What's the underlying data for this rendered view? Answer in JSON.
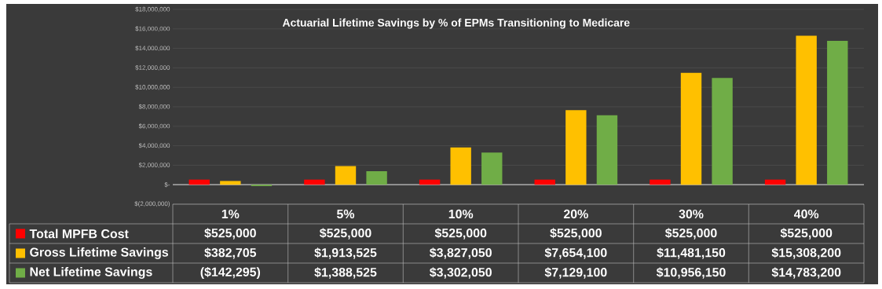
{
  "chart_data": {
    "type": "bar",
    "title": "Actuarial Lifetime Savings by % of EPMs Transitioning to Medicare",
    "categories": [
      "1%",
      "5%",
      "10%",
      "20%",
      "30%",
      "40%"
    ],
    "series": [
      {
        "name": "Total MPFB Cost",
        "color": "#ff0000",
        "values": [
          525000,
          525000,
          525000,
          525000,
          525000,
          525000
        ],
        "value_labels": [
          "$525,000",
          "$525,000",
          "$525,000",
          "$525,000",
          "$525,000",
          "$525,000"
        ]
      },
      {
        "name": "Gross Lifetime Savings",
        "color": "#ffc000",
        "values": [
          382705,
          1913525,
          3827050,
          7654100,
          11481150,
          15308200
        ],
        "value_labels": [
          "$382,705",
          "$1,913,525",
          "$3,827,050",
          "$7,654,100",
          "$11,481,150",
          "$15,308,200"
        ]
      },
      {
        "name": "Net Lifetime Savings",
        "color": "#70ad47",
        "values": [
          -142295,
          1388525,
          3302050,
          7129100,
          10956150,
          14783200
        ],
        "value_labels": [
          "($142,295)",
          "$1,388,525",
          "$3,302,050",
          "$7,129,100",
          "$10,956,150",
          "$14,783,200"
        ]
      }
    ],
    "ylim": [
      -2000000,
      18000000
    ],
    "yticks": [
      {
        "value": -2000000,
        "label": "$(2,000,000)"
      },
      {
        "value": 0,
        "label": "$-"
      },
      {
        "value": 2000000,
        "label": "$2,000,000"
      },
      {
        "value": 4000000,
        "label": "$4,000,000"
      },
      {
        "value": 6000000,
        "label": "$6,000,000"
      },
      {
        "value": 8000000,
        "label": "$8,000,000"
      },
      {
        "value": 10000000,
        "label": "$10,000,000"
      },
      {
        "value": 12000000,
        "label": "$12,000,000"
      },
      {
        "value": 14000000,
        "label": "$14,000,000"
      },
      {
        "value": 16000000,
        "label": "$16,000,000"
      },
      {
        "value": 18000000,
        "label": "$18,000,000"
      }
    ],
    "grid": "y",
    "legend": "bottom"
  }
}
